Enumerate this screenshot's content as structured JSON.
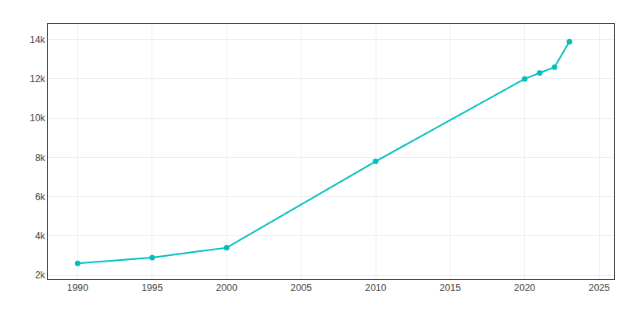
{
  "chart_data": {
    "type": "line",
    "x": [
      1990,
      1995,
      2000,
      2010,
      2020,
      2021,
      2022,
      2023
    ],
    "values": [
      2600,
      2900,
      3400,
      7800,
      12000,
      12300,
      12600,
      13900
    ],
    "color": "#00BFBF",
    "marker": "circle",
    "xlim": [
      1988,
      2026
    ],
    "ylim": [
      1800,
      14800
    ],
    "xticks": [
      1990,
      1995,
      2000,
      2005,
      2010,
      2015,
      2020,
      2025
    ],
    "yticks": [
      {
        "value": 2000,
        "label": "2k"
      },
      {
        "value": 4000,
        "label": "4k"
      },
      {
        "value": 6000,
        "label": "6k"
      },
      {
        "value": 8000,
        "label": "8k"
      },
      {
        "value": 10000,
        "label": "10k"
      },
      {
        "value": 12000,
        "label": "12k"
      },
      {
        "value": 14000,
        "label": "14k"
      }
    ],
    "grid": true
  }
}
